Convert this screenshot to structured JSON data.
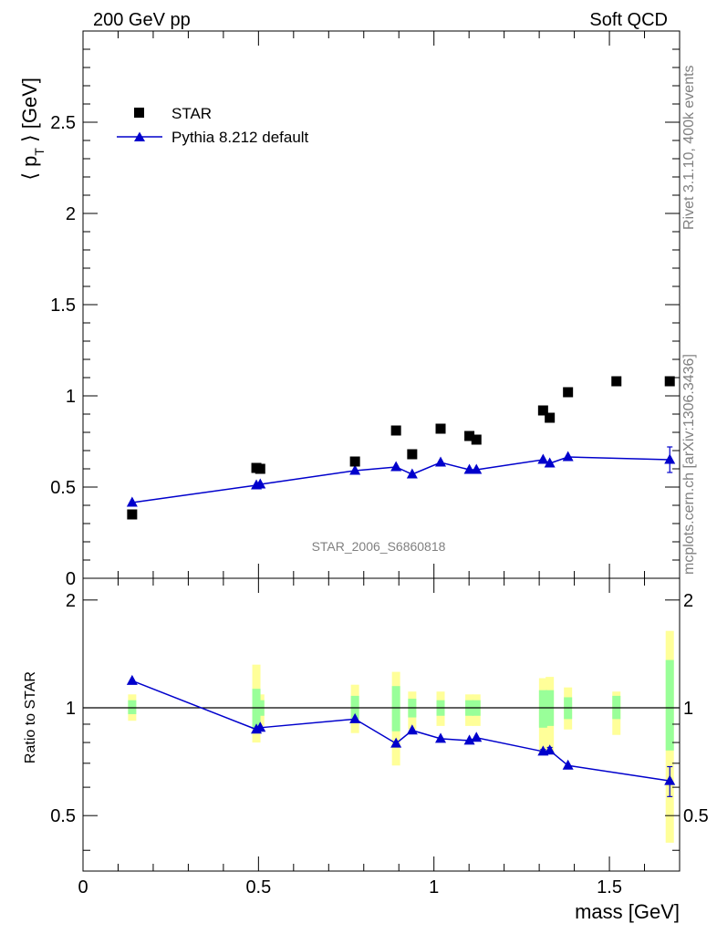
{
  "header": {
    "left": "200 GeV pp",
    "right": "Soft QCD"
  },
  "side_labels": {
    "rivet": "Rivet 3.1.10,  400k events",
    "mcplots": "mcplots.cern.ch [arXiv:1306.3436]"
  },
  "watermark": "STAR_2006_S6860818",
  "chart_data": [
    {
      "type": "scatter",
      "panel": "main",
      "ylabel_main": "p",
      "ylabel_sub": "T",
      "ylabel_unit": "[GeV]",
      "xlim": [
        0,
        1.7
      ],
      "ylim": [
        0,
        3.0
      ],
      "y_ticks": [
        {
          "v": 0,
          "label": "0"
        },
        {
          "v": 0.5,
          "label": "0.5"
        },
        {
          "v": 1,
          "label": "1"
        },
        {
          "v": 1.5,
          "label": "1.5"
        },
        {
          "v": 2,
          "label": "2"
        },
        {
          "v": 2.5,
          "label": "2.5"
        }
      ],
      "legend": {
        "placement": "top-left",
        "entries": [
          "STAR",
          "Pythia 8.212 default"
        ]
      },
      "series": [
        {
          "name": "STAR",
          "marker": "square",
          "color": "#000000",
          "x": [
            0.14,
            0.494,
            0.505,
            0.775,
            0.892,
            0.938,
            1.019,
            1.101,
            1.121,
            1.311,
            1.33,
            1.382,
            1.52,
            1.672
          ],
          "y": [
            0.35,
            0.605,
            0.6,
            0.64,
            0.81,
            0.68,
            0.82,
            0.78,
            0.76,
            0.92,
            0.88,
            1.02,
            1.08,
            1.08
          ]
        },
        {
          "name": "Pythia 8.212 default",
          "marker": "triangle",
          "color": "#0000cc",
          "x": [
            0.14,
            0.494,
            0.505,
            0.775,
            0.892,
            0.938,
            1.019,
            1.101,
            1.121,
            1.311,
            1.33,
            1.382,
            1.672
          ],
          "y": [
            0.415,
            0.51,
            0.515,
            0.59,
            0.61,
            0.57,
            0.635,
            0.595,
            0.595,
            0.65,
            0.63,
            0.665,
            0.65
          ],
          "yerr": [
            0,
            0,
            0,
            0,
            0,
            0,
            0,
            0,
            0,
            0,
            0,
            0,
            0.07
          ]
        }
      ]
    },
    {
      "type": "scatter",
      "panel": "ratio",
      "ylabel": "Ratio to STAR",
      "xlabel": "mass [GeV]",
      "xlim": [
        0,
        1.7
      ],
      "ylim": [
        0.35,
        2.3
      ],
      "x_ticks": [
        {
          "v": 0,
          "label": "0"
        },
        {
          "v": 0.5,
          "label": "0.5"
        },
        {
          "v": 1,
          "label": "1"
        },
        {
          "v": 1.5,
          "label": "1.5"
        }
      ],
      "y_ticks": [
        {
          "v": 0.5,
          "label": "0.5"
        },
        {
          "v": 1,
          "label": "1"
        },
        {
          "v": 2,
          "label": "2"
        }
      ],
      "reference_line": 1,
      "bands": [
        {
          "x": 0.14,
          "yellow": [
            0.92,
            1.09
          ],
          "green": [
            0.96,
            1.05
          ]
        },
        {
          "x": 0.494,
          "yellow": [
            0.8,
            1.32
          ],
          "green": [
            0.88,
            1.13
          ]
        },
        {
          "x": 0.505,
          "yellow": [
            0.89,
            1.09
          ],
          "green": [
            0.95,
            1.05
          ]
        },
        {
          "x": 0.775,
          "yellow": [
            0.85,
            1.16
          ],
          "green": [
            0.93,
            1.08
          ]
        },
        {
          "x": 0.892,
          "yellow": [
            0.69,
            1.26
          ],
          "green": [
            0.86,
            1.15
          ]
        },
        {
          "x": 0.938,
          "yellow": [
            0.87,
            1.11
          ],
          "green": [
            0.94,
            1.06
          ]
        },
        {
          "x": 1.019,
          "yellow": [
            0.89,
            1.11
          ],
          "green": [
            0.95,
            1.05
          ]
        },
        {
          "x": 1.101,
          "yellow": [
            0.89,
            1.09
          ],
          "green": [
            0.95,
            1.05
          ]
        },
        {
          "x": 1.121,
          "yellow": [
            0.89,
            1.09
          ],
          "green": [
            0.95,
            1.05
          ]
        },
        {
          "x": 1.311,
          "yellow": [
            0.74,
            1.21
          ],
          "green": [
            0.88,
            1.12
          ]
        },
        {
          "x": 1.33,
          "yellow": [
            0.75,
            1.22
          ],
          "green": [
            0.89,
            1.12
          ]
        },
        {
          "x": 1.382,
          "yellow": [
            0.87,
            1.14
          ],
          "green": [
            0.93,
            1.07
          ]
        },
        {
          "x": 1.52,
          "yellow": [
            0.84,
            1.11
          ],
          "green": [
            0.93,
            1.08
          ]
        },
        {
          "x": 1.672,
          "yellow": [
            0.42,
            1.64
          ],
          "green": [
            0.76,
            1.36
          ]
        }
      ],
      "series": [
        {
          "name": "Pythia 8.212 default",
          "marker": "triangle",
          "color": "#0000cc",
          "x": [
            0.14,
            0.494,
            0.505,
            0.775,
            0.892,
            0.938,
            1.019,
            1.101,
            1.121,
            1.311,
            1.33,
            1.382,
            1.672
          ],
          "y": [
            1.19,
            0.87,
            0.88,
            0.93,
            0.795,
            0.865,
            0.82,
            0.81,
            0.825,
            0.755,
            0.76,
            0.69,
            0.625
          ],
          "yerr": [
            0,
            0,
            0,
            0,
            0,
            0,
            0,
            0,
            0,
            0.01,
            0.015,
            0,
            0.06
          ]
        }
      ]
    }
  ],
  "colors": {
    "band_yellow": "#ffff99",
    "band_green": "#99ff99",
    "mc": "#0000cc",
    "data": "#000000"
  }
}
